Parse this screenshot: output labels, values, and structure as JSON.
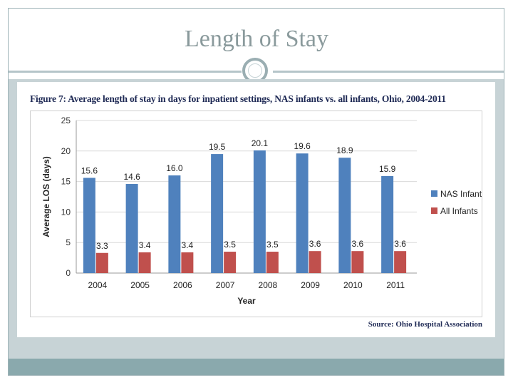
{
  "slide": {
    "title": "Length of Stay"
  },
  "figure": {
    "caption": "Figure 7: Average length of stay in days for inpatient settings, NAS infants vs. all infants, Ohio, 2004-2011",
    "source": "Source: Ohio Hospital Association"
  },
  "colors": {
    "nas": "#4f81bd",
    "all": "#c0504d",
    "frame": "#9eb3b7",
    "panel": "#c7d3d6",
    "footer": "#8aa9ad"
  },
  "chart_data": {
    "type": "bar",
    "categories": [
      "2004",
      "2005",
      "2006",
      "2007",
      "2008",
      "2009",
      "2010",
      "2011"
    ],
    "series": [
      {
        "name": "NAS Infants",
        "values": [
          15.6,
          14.6,
          16.0,
          19.5,
          20.1,
          19.6,
          18.9,
          15.9
        ],
        "labels": [
          "15.6",
          "14.6",
          "16.0",
          "19.5",
          "20.1",
          "19.6",
          "18.9",
          "15.9"
        ]
      },
      {
        "name": "All Infants",
        "values": [
          3.3,
          3.4,
          3.4,
          3.5,
          3.5,
          3.6,
          3.6,
          3.6
        ],
        "labels": [
          "3.3",
          "3.4",
          "3.4",
          "3.5",
          "3.5",
          "3.6",
          "3.6",
          "3.6"
        ]
      }
    ],
    "xlabel": "Year",
    "ylabel": "Average LOS (days)",
    "ylim": [
      0,
      25
    ],
    "yticks": [
      "0",
      "5",
      "10",
      "15",
      "20",
      "25"
    ],
    "grid": true,
    "legend_position": "right"
  }
}
